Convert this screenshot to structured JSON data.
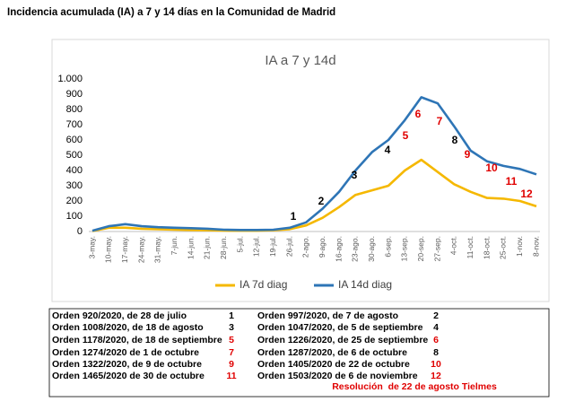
{
  "title": "Incidencia acumulada (IA) a 7 y 14 días en la Comunidad de Madrid",
  "chart_data": {
    "type": "line",
    "title": "IA a 7 y 14d",
    "categories": [
      "3-may.",
      "10-may.",
      "17-may.",
      "24-may.",
      "31-may.",
      "7-jun.",
      "14-jun.",
      "21-jun.",
      "28-jun.",
      "5-jul.",
      "12-jul.",
      "19-jul.",
      "26-jul.",
      "2-ago.",
      "9-ago.",
      "16-ago.",
      "23-ago.",
      "30-ago.",
      "6-sep.",
      "13-sep.",
      "20-sep.",
      "27-sep.",
      "4-oct.",
      "11-oct.",
      "18-oct.",
      "25-oct.",
      "1-nov.",
      "8-nov."
    ],
    "series": [
      {
        "name": "IA 7d diag",
        "color": "#f5b800",
        "values": [
          3,
          25,
          25,
          18,
          15,
          12,
          10,
          8,
          6,
          5,
          5,
          8,
          15,
          40,
          90,
          160,
          240,
          270,
          300,
          400,
          470,
          390,
          310,
          260,
          220,
          215,
          200,
          165
        ]
      },
      {
        "name": "IA 14d diag",
        "color": "#2e75b6",
        "values": [
          5,
          35,
          48,
          35,
          28,
          25,
          22,
          18,
          12,
          10,
          10,
          12,
          25,
          60,
          150,
          260,
          400,
          520,
          600,
          730,
          880,
          840,
          690,
          530,
          460,
          430,
          410,
          375
        ]
      }
    ],
    "ylim": [
      0,
      1000
    ],
    "yticks": [
      0,
      100,
      200,
      300,
      400,
      500,
      600,
      700,
      800,
      900,
      {
        "value": 1000,
        "label": "1.000"
      }
    ],
    "grid": false,
    "legend": "bottom",
    "annotations": [
      {
        "label": "1",
        "color": "#000000"
      },
      {
        "label": "2",
        "color": "#000000"
      },
      {
        "label": "3",
        "color": "#000000"
      },
      {
        "label": "4",
        "color": "#000000"
      },
      {
        "label": "5",
        "color": "#e00000"
      },
      {
        "label": "6",
        "color": "#e00000"
      },
      {
        "label": "7",
        "color": "#e00000"
      },
      {
        "label": "8",
        "color": "#000000"
      },
      {
        "label": "9",
        "color": "#e00000"
      },
      {
        "label": "10",
        "color": "#e00000"
      },
      {
        "label": "11",
        "color": "#e00000"
      },
      {
        "label": "12",
        "color": "#e00000"
      }
    ]
  },
  "orders": {
    "rows": [
      [
        {
          "text": "Orden 920/2020, de 28 de julio",
          "number": "1",
          "color": "#000000"
        },
        {
          "text": "Orden 997/2020, de 7 de agosto",
          "number": "2",
          "color": "#000000"
        }
      ],
      [
        {
          "text": "Orden 1008/2020, de 18 de agosto",
          "number": "3",
          "color": "#000000"
        },
        {
          "text": "Orden 1047/2020, de 5 de septiembre",
          "number": "4",
          "color": "#000000"
        }
      ],
      [
        {
          "text": "Orden 1178/2020, de 18 de septiembre",
          "number": "5",
          "color": "#e00000"
        },
        {
          "text": "Orden 1226/2020, de 25 de septiembre",
          "number": "6",
          "color": "#e00000"
        }
      ],
      [
        {
          "text": "Orden 1274/2020 de 1 de octubre",
          "number": "7",
          "color": "#e00000"
        },
        {
          "text": "Orden 1287/2020, de 6 de octubre",
          "number": "8",
          "color": "#000000"
        }
      ],
      [
        {
          "text": "Orden 1322/2020, de 9 de octubre",
          "number": "9",
          "color": "#e00000"
        },
        {
          "text": "Orden 1405/2020 de 22 de octubre",
          "number": "10",
          "color": "#e00000"
        }
      ],
      [
        {
          "text": "Orden  1465/2020 de 30 de octubre",
          "number": "11",
          "color": "#e00000"
        },
        {
          "text": "Orden 1503/2020 de 6 de noviembre",
          "number": "12",
          "color": "#e00000"
        }
      ]
    ],
    "footer": "Resolución  de 22 de agosto Tielmes"
  }
}
